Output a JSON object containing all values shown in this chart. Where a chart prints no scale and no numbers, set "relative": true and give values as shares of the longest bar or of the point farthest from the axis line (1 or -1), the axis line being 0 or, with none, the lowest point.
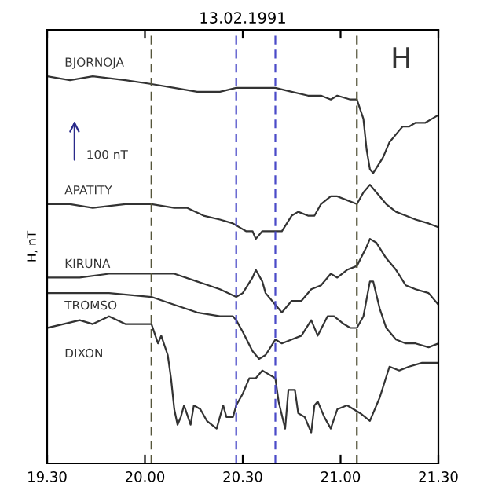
{
  "chart_data": {
    "type": "line",
    "title": "13.02.1991",
    "ylabel": "H, nT",
    "relative": true,
    "annotations": [
      "H",
      "100 nT"
    ],
    "xlim": [
      "1991-02-13T19:30",
      "1991-02-13T21:30"
    ],
    "xticks": [
      {
        "value": "1991-02-13T19:30",
        "label": "19.30"
      },
      {
        "value": "1991-02-13T20:00",
        "label": "20.00"
      },
      {
        "value": "1991-02-13T20:30",
        "label": "20.30"
      },
      {
        "value": "1991-02-13T21:00",
        "label": "21.00"
      },
      {
        "value": "1991-02-13T21:30",
        "label": "21.30"
      }
    ],
    "grid": false,
    "legend": false,
    "marker": "none",
    "line_style": "solid",
    "ref_lines": [
      {
        "axis": "x",
        "value": "1991-02-13T20:02",
        "label": null,
        "color": "#55553a",
        "line_style": "dashed"
      },
      {
        "axis": "x",
        "value": "1991-02-13T20:28",
        "label": null,
        "color": "#4a4ac8",
        "line_style": "dashed"
      },
      {
        "axis": "x",
        "value": "1991-02-13T20:40",
        "label": null,
        "color": "#4a4ac8",
        "line_style": "dashed"
      },
      {
        "axis": "x",
        "value": "1991-02-13T21:05",
        "label": null,
        "color": "#55553a",
        "line_style": "dashed"
      }
    ],
    "series": [
      {
        "name": "BJORNOJA",
        "color": "#333333",
        "x": [
          "1991-02-13T19:30",
          "1991-02-13T19:37",
          "1991-02-13T19:44",
          "1991-02-13T19:54",
          "1991-02-13T20:02",
          "1991-02-13T20:09",
          "1991-02-13T20:16",
          "1991-02-13T20:23",
          "1991-02-13T20:28",
          "1991-02-13T20:35",
          "1991-02-13T20:40",
          "1991-02-13T20:45",
          "1991-02-13T20:50",
          "1991-02-13T20:54",
          "1991-02-13T20:57",
          "1991-02-13T20:59",
          "1991-02-13T21:03",
          "1991-02-13T21:05",
          "1991-02-13T21:07",
          "1991-02-13T21:08",
          "1991-02-13T21:09",
          "1991-02-13T21:10",
          "1991-02-13T21:13",
          "1991-02-13T21:15",
          "1991-02-13T21:18",
          "1991-02-13T21:19",
          "1991-02-13T21:21",
          "1991-02-13T21:23",
          "1991-02-13T21:26",
          "1991-02-13T21:28",
          "1991-02-13T21:30"
        ],
        "values": [
          1.0,
          0.99,
          1.0,
          0.99,
          0.98,
          0.97,
          0.96,
          0.96,
          0.97,
          0.97,
          0.97,
          0.96,
          0.95,
          0.95,
          0.94,
          0.95,
          0.94,
          0.94,
          0.89,
          0.81,
          0.76,
          0.75,
          0.79,
          0.83,
          0.86,
          0.87,
          0.87,
          0.88,
          0.88,
          0.89,
          0.9
        ]
      },
      {
        "name": "APATITY",
        "color": "#333333",
        "x": [
          "1991-02-13T19:30",
          "1991-02-13T19:37",
          "1991-02-13T19:44",
          "1991-02-13T19:54",
          "1991-02-13T20:02",
          "1991-02-13T20:09",
          "1991-02-13T20:13",
          "1991-02-13T20:18",
          "1991-02-13T20:23",
          "1991-02-13T20:27",
          "1991-02-13T20:29",
          "1991-02-13T20:31",
          "1991-02-13T20:33",
          "1991-02-13T20:34",
          "1991-02-13T20:36",
          "1991-02-13T20:38",
          "1991-02-13T20:40",
          "1991-02-13T20:42",
          "1991-02-13T20:45",
          "1991-02-13T20:47",
          "1991-02-13T20:50",
          "1991-02-13T20:52",
          "1991-02-13T20:54",
          "1991-02-13T20:57",
          "1991-02-13T20:59",
          "1991-02-13T21:02",
          "1991-02-13T21:05",
          "1991-02-13T21:07",
          "1991-02-13T21:09",
          "1991-02-13T21:11",
          "1991-02-13T21:14",
          "1991-02-13T21:17",
          "1991-02-13T21:20",
          "1991-02-13T21:23",
          "1991-02-13T21:27",
          "1991-02-13T21:30"
        ],
        "values": [
          0.67,
          0.67,
          0.66,
          0.67,
          0.67,
          0.66,
          0.66,
          0.64,
          0.63,
          0.62,
          0.61,
          0.6,
          0.6,
          0.58,
          0.6,
          0.6,
          0.6,
          0.6,
          0.64,
          0.65,
          0.64,
          0.64,
          0.67,
          0.69,
          0.69,
          0.68,
          0.67,
          0.7,
          0.72,
          0.7,
          0.67,
          0.65,
          0.64,
          0.63,
          0.62,
          0.61
        ]
      },
      {
        "name": "KIRUNA",
        "color": "#333333",
        "x": [
          "1991-02-13T19:30",
          "1991-02-13T19:40",
          "1991-02-13T19:49",
          "1991-02-13T19:59",
          "1991-02-13T20:02",
          "1991-02-13T20:09",
          "1991-02-13T20:16",
          "1991-02-13T20:23",
          "1991-02-13T20:28",
          "1991-02-13T20:30",
          "1991-02-13T20:33",
          "1991-02-13T20:34",
          "1991-02-13T20:36",
          "1991-02-13T20:37",
          "1991-02-13T20:40",
          "1991-02-13T20:42",
          "1991-02-13T20:45",
          "1991-02-13T20:48",
          "1991-02-13T20:51",
          "1991-02-13T20:54",
          "1991-02-13T20:57",
          "1991-02-13T20:59",
          "1991-02-13T21:02",
          "1991-02-13T21:05",
          "1991-02-13T21:08",
          "1991-02-13T21:09",
          "1991-02-13T21:11",
          "1991-02-13T21:14",
          "1991-02-13T21:17",
          "1991-02-13T21:20",
          "1991-02-13T21:23",
          "1991-02-13T21:27",
          "1991-02-13T21:30"
        ],
        "values": [
          0.48,
          0.48,
          0.49,
          0.49,
          0.49,
          0.49,
          0.47,
          0.45,
          0.43,
          0.44,
          0.48,
          0.5,
          0.47,
          0.44,
          0.41,
          0.39,
          0.42,
          0.42,
          0.45,
          0.46,
          0.49,
          0.48,
          0.5,
          0.51,
          0.56,
          0.58,
          0.57,
          0.53,
          0.5,
          0.46,
          0.45,
          0.44,
          0.41
        ]
      },
      {
        "name": "TROMSO",
        "color": "#333333",
        "x": [
          "1991-02-13T19:30",
          "1991-02-13T19:40",
          "1991-02-13T19:49",
          "1991-02-13T20:02",
          "1991-02-13T20:09",
          "1991-02-13T20:16",
          "1991-02-13T20:23",
          "1991-02-13T20:27",
          "1991-02-13T20:28",
          "1991-02-13T20:30",
          "1991-02-13T20:33",
          "1991-02-13T20:35",
          "1991-02-13T20:37",
          "1991-02-13T20:40",
          "1991-02-13T20:42",
          "1991-02-13T20:45",
          "1991-02-13T20:48",
          "1991-02-13T20:51",
          "1991-02-13T20:53",
          "1991-02-13T20:56",
          "1991-02-13T20:58",
          "1991-02-13T21:01",
          "1991-02-13T21:03",
          "1991-02-13T21:05",
          "1991-02-13T21:07",
          "1991-02-13T21:09",
          "1991-02-13T21:10",
          "1991-02-13T21:12",
          "1991-02-13T21:14",
          "1991-02-13T21:17",
          "1991-02-13T21:20",
          "1991-02-13T21:23",
          "1991-02-13T21:27",
          "1991-02-13T21:30"
        ],
        "values": [
          0.44,
          0.44,
          0.44,
          0.43,
          0.41,
          0.39,
          0.38,
          0.38,
          0.37,
          0.34,
          0.29,
          0.27,
          0.28,
          0.32,
          0.31,
          0.32,
          0.33,
          0.37,
          0.33,
          0.38,
          0.38,
          0.36,
          0.35,
          0.35,
          0.38,
          0.47,
          0.47,
          0.4,
          0.35,
          0.32,
          0.31,
          0.31,
          0.3,
          0.31
        ]
      },
      {
        "name": "DIXON",
        "color": "#333333",
        "x": [
          "1991-02-13T19:30",
          "1991-02-13T19:35",
          "1991-02-13T19:40",
          "1991-02-13T19:44",
          "1991-02-13T19:49",
          "1991-02-13T19:54",
          "1991-02-13T20:00",
          "1991-02-13T20:02",
          "1991-02-13T20:04",
          "1991-02-13T20:05",
          "1991-02-13T20:07",
          "1991-02-13T20:08",
          "1991-02-13T20:09",
          "1991-02-13T20:10",
          "1991-02-13T20:11",
          "1991-02-13T20:12",
          "1991-02-13T20:14",
          "1991-02-13T20:15",
          "1991-02-13T20:17",
          "1991-02-13T20:19",
          "1991-02-13T20:22",
          "1991-02-13T20:24",
          "1991-02-13T20:25",
          "1991-02-13T20:27",
          "1991-02-13T20:28",
          "1991-02-13T20:30",
          "1991-02-13T20:32",
          "1991-02-13T20:34",
          "1991-02-13T20:36",
          "1991-02-13T20:38",
          "1991-02-13T20:40",
          "1991-02-13T20:41",
          "1991-02-13T20:43",
          "1991-02-13T20:44",
          "1991-02-13T20:46",
          "1991-02-13T20:47",
          "1991-02-13T20:49",
          "1991-02-13T20:51",
          "1991-02-13T20:52",
          "1991-02-13T20:53",
          "1991-02-13T20:55",
          "1991-02-13T20:57",
          "1991-02-13T20:59",
          "1991-02-13T21:02",
          "1991-02-13T21:04",
          "1991-02-13T21:06",
          "1991-02-13T21:09",
          "1991-02-13T21:10",
          "1991-02-13T21:12",
          "1991-02-13T21:15",
          "1991-02-13T21:18",
          "1991-02-13T21:21",
          "1991-02-13T21:25",
          "1991-02-13T21:28",
          "1991-02-13T21:30"
        ],
        "values": [
          0.35,
          0.36,
          0.37,
          0.36,
          0.38,
          0.36,
          0.36,
          0.36,
          0.31,
          0.33,
          0.28,
          0.22,
          0.14,
          0.1,
          0.12,
          0.15,
          0.1,
          0.15,
          0.14,
          0.11,
          0.09,
          0.15,
          0.12,
          0.12,
          0.15,
          0.18,
          0.22,
          0.22,
          0.24,
          0.23,
          0.22,
          0.16,
          0.09,
          0.19,
          0.19,
          0.13,
          0.12,
          0.08,
          0.15,
          0.16,
          0.12,
          0.09,
          0.14,
          0.15,
          0.14,
          0.13,
          0.11,
          0.13,
          0.17,
          0.25,
          0.24,
          0.25,
          0.26,
          0.26,
          0.26
        ]
      }
    ]
  }
}
